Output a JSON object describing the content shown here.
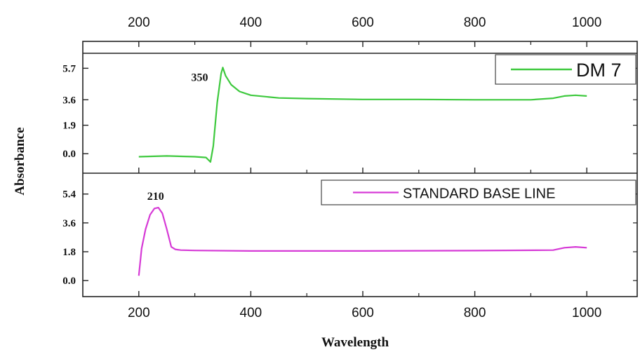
{
  "chart_data": [
    {
      "type": "line",
      "panel": "top",
      "xlabel": "",
      "ylabel": "Absorbance",
      "xlim": [
        100,
        1090
      ],
      "ylim": [
        -1.3,
        6.7
      ],
      "x_ticks": [
        200,
        400,
        600,
        800,
        1000
      ],
      "y_ticks": [
        0.0,
        1.9,
        3.6,
        5.7
      ],
      "y_tick_labels": [
        "0.0",
        "1.9",
        "3.6",
        "5.7"
      ],
      "legend_position": "top-right",
      "annotations": [
        {
          "text": "350",
          "x": 350,
          "y": 5.7
        }
      ],
      "series": [
        {
          "name": "DM 7",
          "color": "#3ec93e",
          "x": [
            200,
            250,
            300,
            320,
            328,
            333,
            340,
            347,
            350,
            355,
            365,
            380,
            400,
            450,
            500,
            600,
            700,
            800,
            900,
            940,
            960,
            980,
            1000
          ],
          "y": [
            -0.2,
            -0.15,
            -0.2,
            -0.25,
            -0.55,
            0.5,
            3.4,
            5.35,
            5.75,
            5.2,
            4.6,
            4.15,
            3.9,
            3.72,
            3.68,
            3.62,
            3.62,
            3.6,
            3.6,
            3.7,
            3.85,
            3.9,
            3.85
          ]
        }
      ]
    },
    {
      "type": "line",
      "panel": "bottom",
      "xlabel": "Wavelength",
      "ylabel": "Absorbance",
      "xlim": [
        100,
        1090
      ],
      "ylim": [
        -1.0,
        6.7
      ],
      "x_ticks": [
        200,
        400,
        600,
        800,
        1000
      ],
      "y_ticks": [
        0.0,
        1.8,
        3.6,
        5.4
      ],
      "y_tick_labels": [
        "0.0",
        "1.8",
        "3.6",
        "5.4"
      ],
      "legend_position": "top-right",
      "annotations": [
        {
          "text": "210",
          "x": 230,
          "y": 4.6
        }
      ],
      "series": [
        {
          "name": "STANDARD BASE LINE",
          "color": "#d63ad6",
          "x": [
            200,
            205,
            212,
            220,
            228,
            235,
            242,
            250,
            258,
            265,
            275,
            300,
            400,
            600,
            800,
            940,
            960,
            980,
            1000
          ],
          "y": [
            0.3,
            2.0,
            3.2,
            4.1,
            4.5,
            4.55,
            4.2,
            3.2,
            2.1,
            1.95,
            1.9,
            1.88,
            1.85,
            1.85,
            1.87,
            1.9,
            2.05,
            2.1,
            2.05
          ]
        }
      ]
    }
  ]
}
